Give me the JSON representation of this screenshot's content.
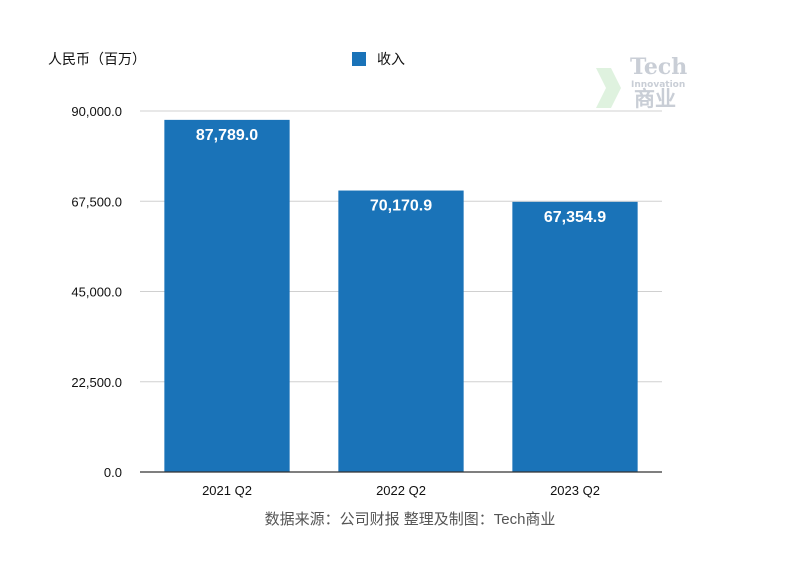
{
  "chart_data": {
    "type": "bar",
    "ylabel": "人民币（百万）",
    "categories": [
      "2021 Q2",
      "2022 Q2",
      "2023 Q2"
    ],
    "series": [
      {
        "name": "收入",
        "values": [
          87789.0,
          70170.9,
          67354.9
        ],
        "color": "#1a73b8"
      }
    ],
    "value_labels": [
      "87,789.0",
      "70,170.9",
      "67,354.9"
    ],
    "y_ticks": [
      "0.0",
      "22,500.0",
      "45,000.0",
      "67,500.0",
      "90,000.0"
    ],
    "ylim": [
      0,
      90000
    ],
    "grid": true,
    "legend_position": "top-center"
  },
  "source": "数据来源：公司财报 整理及制图：Tech商业",
  "watermark": {
    "line1": "Tech",
    "line2": "Innovation",
    "line3": "商业"
  }
}
